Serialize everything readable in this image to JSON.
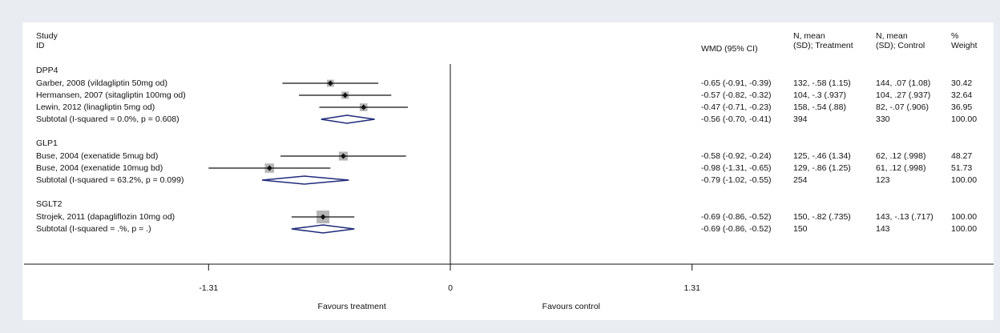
{
  "chart_data": {
    "type": "forest",
    "study_header": [
      "Study",
      "ID"
    ],
    "column_headers": [
      [
        "WMD (95% CI)"
      ],
      [
        "N, mean",
        "(SD); Treatment"
      ],
      [
        "N, mean",
        "(SD); Control"
      ],
      [
        "%",
        "Weight"
      ]
    ],
    "groups": [
      {
        "name": "DPP4",
        "studies": [
          {
            "label": "Garber, 2008 (vildagliptin 50mg od)",
            "estimate": -0.65,
            "ci": [
              -0.91,
              -0.39
            ],
            "weight": 30.42,
            "columns": [
              "-0.65 (-0.91, -0.39)",
              "132, -.58 (1.15)",
              "144, .07 (1.08)",
              "30.42"
            ]
          },
          {
            "label": "Hermansen, 2007 (sitagliptin 100mg od)",
            "estimate": -0.57,
            "ci": [
              -0.82,
              -0.32
            ],
            "weight": 32.64,
            "columns": [
              "-0.57 (-0.82, -0.32)",
              "104, -.3 (.937)",
              "104, .27 (.937)",
              "32.64"
            ]
          },
          {
            "label": "Lewin, 2012 (linagliptin 5mg od)",
            "estimate": -0.47,
            "ci": [
              -0.71,
              -0.23
            ],
            "weight": 36.95,
            "columns": [
              "-0.47 (-0.71, -0.23)",
              "158, -.54 (.88)",
              "82, -.07 (.906)",
              "36.95"
            ]
          }
        ],
        "subtotal": {
          "label": "Subtotal  (I-squared = 0.0%, p = 0.608)",
          "estimate": -0.56,
          "ci": [
            -0.7,
            -0.41
          ],
          "columns": [
            "-0.56 (-0.70, -0.41)",
            "394",
            "330",
            "100.00"
          ]
        }
      },
      {
        "name": "GLP1",
        "studies": [
          {
            "label": "Buse, 2004 (exenatide 5mug bd)",
            "estimate": -0.58,
            "ci": [
              -0.92,
              -0.24
            ],
            "weight": 48.27,
            "columns": [
              "-0.58 (-0.92, -0.24)",
              "125, -.46 (1.34)",
              "62, .12 (.998)",
              "48.27"
            ]
          },
          {
            "label": "Buse, 2004 (exenatide 10mug bd)",
            "estimate": -0.98,
            "ci": [
              -1.31,
              -0.65
            ],
            "weight": 51.73,
            "columns": [
              "-0.98 (-1.31, -0.65)",
              "129, -.86 (1.25)",
              "61, .12 (.998)",
              "51.73"
            ]
          }
        ],
        "subtotal": {
          "label": "Subtotal  (I-squared = 63.2%, p = 0.099)",
          "estimate": -0.79,
          "ci": [
            -1.02,
            -0.55
          ],
          "columns": [
            "-0.79 (-1.02, -0.55)",
            "254",
            "123",
            "100.00"
          ]
        }
      },
      {
        "name": "SGLT2",
        "studies": [
          {
            "label": "Strojek, 2011 (dapagliflozin 10mg od)",
            "estimate": -0.69,
            "ci": [
              -0.86,
              -0.52
            ],
            "weight": 100.0,
            "columns": [
              "-0.69 (-0.86, -0.52)",
              "150, -.82 (.735)",
              "143, -.13 (.717)",
              "100.00"
            ]
          }
        ],
        "subtotal": {
          "label": "Subtotal  (I-squared = .%, p = .)",
          "estimate": -0.69,
          "ci": [
            -0.86,
            -0.52
          ],
          "columns": [
            "-0.69 (-0.86, -0.52)",
            "150",
            "143",
            "100.00"
          ]
        }
      }
    ],
    "xlim": [
      -2.31,
      2.31
    ],
    "xticks": [
      -1.31,
      0,
      1.31
    ],
    "favours_left": "Favours treatment",
    "favours_right": "Favours control",
    "box_color": "#b5b5b5",
    "diamond_color": "#1f2a7a"
  }
}
